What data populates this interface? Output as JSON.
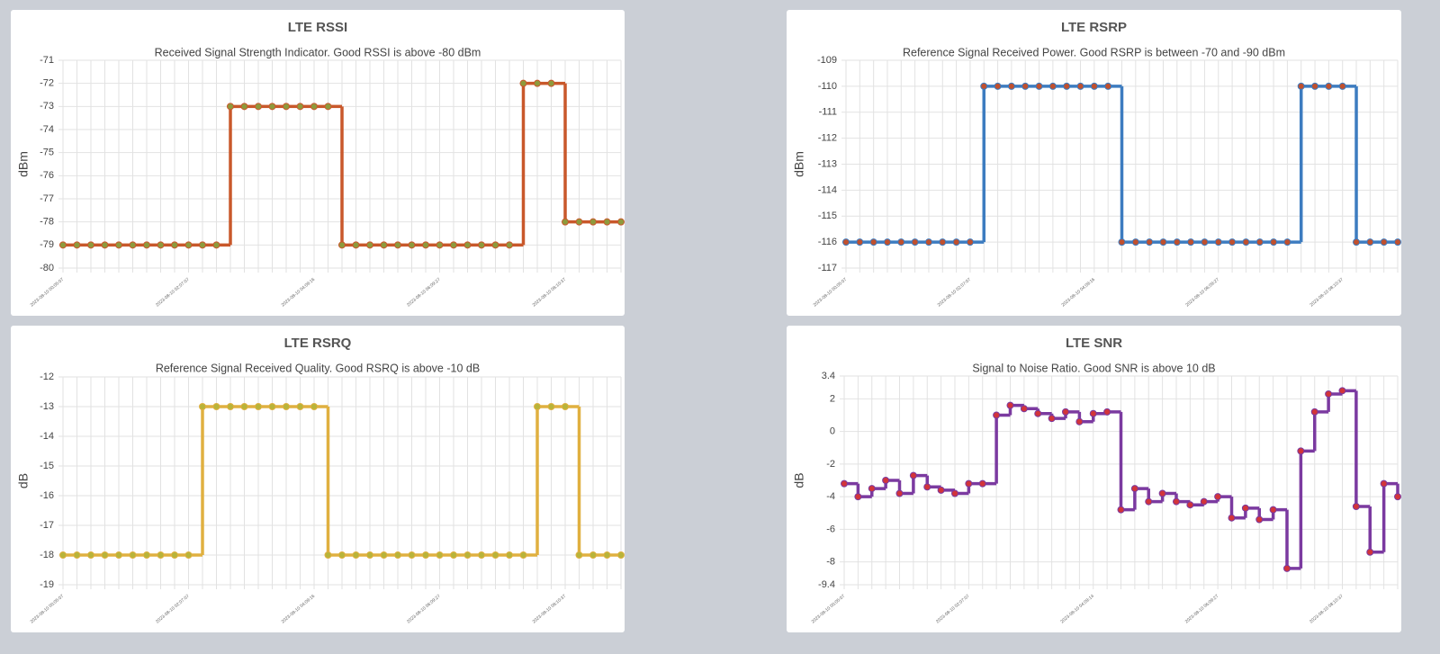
{
  "chart_data": [
    {
      "type": "line",
      "title": "LTE RSSI",
      "subtitle": "Received Signal Strength Indicator. Good RSSI is above -80 dBm",
      "y_label": "dBm",
      "categories": [
        "2023-08-10 00:05:07",
        null,
        null,
        null,
        null,
        null,
        null,
        null,
        null,
        "2023-08-10 02:07:07",
        null,
        null,
        null,
        null,
        null,
        null,
        null,
        null,
        "2023-08-10 04:09:16",
        null,
        null,
        null,
        null,
        null,
        null,
        null,
        null,
        "2023-08-10 06:09:27",
        null,
        null,
        null,
        null,
        null,
        null,
        null,
        null,
        "2023-08-10 08:10:37",
        null,
        null,
        null,
        null
      ],
      "values": [
        -79,
        -79,
        -79,
        -79,
        -79,
        -79,
        -79,
        -79,
        -79,
        -79,
        -79,
        -79,
        -73,
        -73,
        -73,
        -73,
        -73,
        -73,
        -73,
        -73,
        -79,
        -79,
        -79,
        -79,
        -79,
        -79,
        -79,
        -79,
        -79,
        -79,
        -79,
        -79,
        -79,
        -72,
        -72,
        -72,
        -78,
        -78,
        -78,
        -78,
        -78
      ],
      "color": "#c9582b",
      "point_color": "#8e9a3c",
      "ylim": [
        -80,
        -71
      ],
      "yticks": [
        -80,
        -79,
        -78,
        -77,
        -76,
        -75,
        -74,
        -73,
        -72,
        -71
      ],
      "grid": true
    },
    {
      "type": "line",
      "title": "LTE RSRP",
      "subtitle": "Reference Signal Received Power. Good RSRP is between -70 and -90 dBm",
      "y_label": "dBm",
      "categories": [
        "2023-08-10 00:05:07",
        null,
        null,
        null,
        null,
        null,
        null,
        null,
        null,
        "2023-08-10 02:07:07",
        null,
        null,
        null,
        null,
        null,
        null,
        null,
        null,
        "2023-08-10 04:09:16",
        null,
        null,
        null,
        null,
        null,
        null,
        null,
        null,
        "2023-08-10 06:09:27",
        null,
        null,
        null,
        null,
        null,
        null,
        null,
        null,
        "2023-08-10 08:10:37",
        null,
        null,
        null,
        null
      ],
      "values": [
        -116,
        -116,
        -116,
        -116,
        -116,
        -116,
        -116,
        -116,
        -116,
        -116,
        -110,
        -110,
        -110,
        -110,
        -110,
        -110,
        -110,
        -110,
        -110,
        -110,
        -116,
        -116,
        -116,
        -116,
        -116,
        -116,
        -116,
        -116,
        -116,
        -116,
        -116,
        -116,
        -116,
        -110,
        -110,
        -110,
        -110,
        -116,
        -116,
        -116,
        -116
      ],
      "color": "#3d7cc0",
      "point_color": "#c0502e",
      "ylim": [
        -117,
        -109
      ],
      "yticks": [
        -117,
        -116,
        -115,
        -114,
        -113,
        -112,
        -111,
        -110,
        -109
      ],
      "grid": true
    },
    {
      "type": "line",
      "title": "LTE RSRQ",
      "subtitle": "Reference Signal Received Quality. Good RSRQ is above -10 dB",
      "y_label": "dB",
      "categories": [
        "2023-08-10 00:05:07",
        null,
        null,
        null,
        null,
        null,
        null,
        null,
        null,
        "2023-08-10 02:07:07",
        null,
        null,
        null,
        null,
        null,
        null,
        null,
        null,
        "2023-08-10 04:09:16",
        null,
        null,
        null,
        null,
        null,
        null,
        null,
        null,
        "2023-08-10 06:09:27",
        null,
        null,
        null,
        null,
        null,
        null,
        null,
        null,
        "2023-08-10 08:10:37",
        null,
        null,
        null,
        null
      ],
      "values": [
        -18,
        -18,
        -18,
        -18,
        -18,
        -18,
        -18,
        -18,
        -18,
        -18,
        -13,
        -13,
        -13,
        -13,
        -13,
        -13,
        -13,
        -13,
        -13,
        -18,
        -18,
        -18,
        -18,
        -18,
        -18,
        -18,
        -18,
        -18,
        -18,
        -18,
        -18,
        -18,
        -18,
        -18,
        -13,
        -13,
        -13,
        -18,
        -18,
        -18,
        -18
      ],
      "color": "#e0b040",
      "point_color": "#b8b43a",
      "ylim": [
        -19,
        -12
      ],
      "yticks": [
        -19,
        -18,
        -17,
        -16,
        -15,
        -14,
        -13,
        -12
      ],
      "grid": true
    },
    {
      "type": "line",
      "title": "LTE SNR",
      "subtitle": "Signal to Noise Ratio. Good SNR is above 10 dB",
      "y_label": "dB",
      "categories": [
        "2023-08-10 00:05:07",
        null,
        null,
        null,
        null,
        null,
        null,
        null,
        null,
        "2023-08-10 02:07:07",
        null,
        null,
        null,
        null,
        null,
        null,
        null,
        null,
        "2023-08-10 04:09:14",
        null,
        null,
        null,
        null,
        null,
        null,
        null,
        null,
        "2023-08-10 06:09:27",
        null,
        null,
        null,
        null,
        null,
        null,
        null,
        null,
        "2023-08-10 08:10:37",
        null,
        null,
        null,
        null
      ],
      "values": [
        -3.2,
        -4,
        -3.5,
        -3,
        -3.8,
        -2.7,
        -3.4,
        -3.6,
        -3.8,
        -3.2,
        -3.2,
        1,
        1.6,
        1.4,
        1.1,
        0.8,
        1.2,
        0.6,
        1.1,
        1.2,
        -4.8,
        -3.5,
        -4.3,
        -3.8,
        -4.3,
        -4.5,
        -4.3,
        -4,
        -5.3,
        -4.7,
        -5.4,
        -4.8,
        -8.4,
        -1.2,
        1.2,
        2.3,
        2.5,
        -4.6,
        -7.4,
        -3.2,
        -4
      ],
      "color": "#7b3aa0",
      "point_color": "#d2343a",
      "ylim": [
        -9.4,
        3.4
      ],
      "yticks": [
        -9.4,
        -8,
        -6,
        -4,
        -2,
        0,
        2,
        3.4
      ],
      "grid": true
    }
  ]
}
